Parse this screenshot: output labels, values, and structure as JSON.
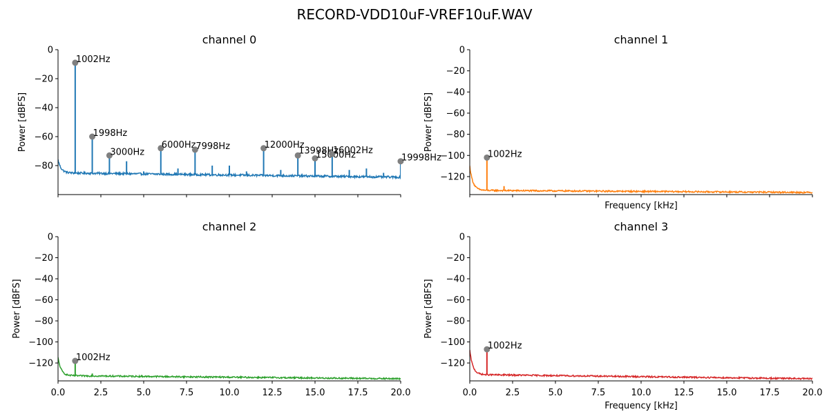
{
  "figure": {
    "title": "RECORD-VDD10uF-VREF10uF.WAV"
  },
  "chart_data": [
    {
      "type": "line",
      "title": "channel 0",
      "xlabel": "",
      "ylabel": "Power [dBFS]",
      "xlim": [
        0,
        20
      ],
      "ylim": [
        -100,
        0
      ],
      "x_ticks": [],
      "x_tick_labels": [],
      "y_ticks": [
        0,
        -20,
        -40,
        -60,
        -80
      ],
      "y_tick_labels": [
        "0",
        "−20",
        "−40",
        "−60",
        "−80"
      ],
      "color": "#1f77b4",
      "noise_floor": {
        "start": -85,
        "end": -88,
        "knee": -76
      },
      "spikes": [
        {
          "x": 1.002,
          "y": -9
        },
        {
          "x": 1.998,
          "y": -60
        },
        {
          "x": 3.0,
          "y": -73
        },
        {
          "x": 4.0,
          "y": -77
        },
        {
          "x": 5.0,
          "y": -84
        },
        {
          "x": 6.0,
          "y": -68
        },
        {
          "x": 7.0,
          "y": -82
        },
        {
          "x": 7.998,
          "y": -69
        },
        {
          "x": 9.0,
          "y": -80
        },
        {
          "x": 10.0,
          "y": -80
        },
        {
          "x": 11.0,
          "y": -84
        },
        {
          "x": 12.0,
          "y": -68
        },
        {
          "x": 13.0,
          "y": -83
        },
        {
          "x": 13.998,
          "y": -73
        },
        {
          "x": 15.0,
          "y": -75
        },
        {
          "x": 16.002,
          "y": -72
        },
        {
          "x": 17.0,
          "y": -83
        },
        {
          "x": 18.0,
          "y": -82
        },
        {
          "x": 19.0,
          "y": -85
        },
        {
          "x": 19.998,
          "y": -77
        }
      ],
      "peaks": [
        {
          "x": 1.002,
          "y": -9,
          "label": "1002Hz"
        },
        {
          "x": 1.998,
          "y": -60,
          "label": "1998Hz"
        },
        {
          "x": 3.0,
          "y": -73,
          "label": "3000Hz"
        },
        {
          "x": 6.0,
          "y": -68,
          "label": "6000Hz"
        },
        {
          "x": 7.998,
          "y": -69,
          "label": "7998Hz"
        },
        {
          "x": 12.0,
          "y": -68,
          "label": "12000Hz"
        },
        {
          "x": 13.998,
          "y": -73,
          "label": "13998Hz"
        },
        {
          "x": 15.0,
          "y": -75,
          "label": "15000Hz"
        },
        {
          "x": 16.002,
          "y": -72,
          "label": "16002Hz"
        },
        {
          "x": 19.998,
          "y": -77,
          "label": "19998Hz"
        }
      ]
    },
    {
      "type": "line",
      "title": "channel 1",
      "xlabel": "Frequency [kHz]",
      "ylabel": "Power [dBFS]",
      "xlim": [
        0,
        20
      ],
      "ylim": [
        -137,
        0
      ],
      "x_ticks": [],
      "x_tick_labels": [],
      "y_ticks": [
        0,
        -20,
        -40,
        -60,
        -80,
        -100,
        -120
      ],
      "y_tick_labels": [
        "0",
        "−20",
        "−40",
        "−60",
        "−80",
        "−100",
        "−120"
      ],
      "color": "#ff7f0e",
      "noise_floor": {
        "start": -133,
        "end": -135,
        "knee": -110
      },
      "spikes": [
        {
          "x": 1.002,
          "y": -102
        },
        {
          "x": 2.0,
          "y": -129
        }
      ],
      "peaks": [
        {
          "x": 1.002,
          "y": -102,
          "label": "1002Hz"
        }
      ]
    },
    {
      "type": "line",
      "title": "channel 2",
      "xlabel": "",
      "ylabel": "Power [dBFS]",
      "xlim": [
        0,
        20
      ],
      "ylim": [
        -137,
        0
      ],
      "x_ticks": [
        0,
        2.5,
        5,
        7.5,
        10,
        12.5,
        15,
        17.5,
        20
      ],
      "x_tick_labels": [
        "0.0",
        "2.5",
        "5.0",
        "7.5",
        "10.0",
        "12.5",
        "15.0",
        "17.5",
        "20.0"
      ],
      "y_ticks": [
        0,
        -20,
        -40,
        -60,
        -80,
        -100,
        -120
      ],
      "y_tick_labels": [
        "0",
        "−20",
        "−40",
        "−60",
        "−80",
        "−100",
        "−120"
      ],
      "color": "#2ca02c",
      "noise_floor": {
        "start": -132,
        "end": -135,
        "knee": -115
      },
      "spikes": [
        {
          "x": 1.002,
          "y": -118
        },
        {
          "x": 2.0,
          "y": -130
        }
      ],
      "peaks": [
        {
          "x": 1.002,
          "y": -118,
          "label": "1002Hz"
        }
      ]
    },
    {
      "type": "line",
      "title": "channel 3",
      "xlabel": "Frequency [kHz]",
      "ylabel": "Power [dBFS]",
      "xlim": [
        0,
        20
      ],
      "ylim": [
        -137,
        0
      ],
      "x_ticks": [
        0,
        2.5,
        5,
        7.5,
        10,
        12.5,
        15,
        17.5,
        20
      ],
      "x_tick_labels": [
        "0.0",
        "2.5",
        "5.0",
        "7.5",
        "10.0",
        "12.5",
        "15.0",
        "17.5",
        "20.0"
      ],
      "y_ticks": [
        0,
        -20,
        -40,
        -60,
        -80,
        -100,
        -120
      ],
      "y_tick_labels": [
        "0",
        "−20",
        "−40",
        "−60",
        "−80",
        "−100",
        "−120"
      ],
      "color": "#d62728",
      "noise_floor": {
        "start": -131,
        "end": -135,
        "knee": -108
      },
      "spikes": [
        {
          "x": 1.002,
          "y": -107
        },
        {
          "x": 2.0,
          "y": -130
        },
        {
          "x": 12.0,
          "y": -133
        }
      ],
      "peaks": [
        {
          "x": 1.002,
          "y": -107,
          "label": "1002Hz"
        }
      ]
    }
  ]
}
